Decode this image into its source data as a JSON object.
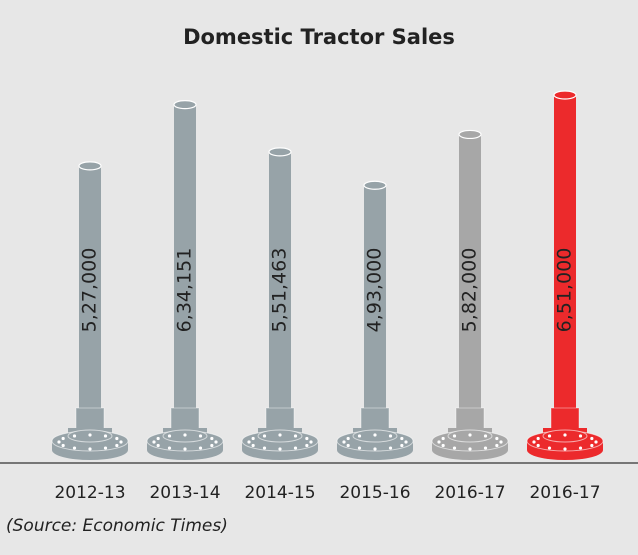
{
  "chart_data": {
    "type": "bar",
    "title": "Domestic Tractor Sales",
    "categories": [
      "2012-13",
      "2013-14",
      "2014-15",
      "2015-16",
      "2016-17",
      "2016-17"
    ],
    "values": [
      527000,
      634151,
      551463,
      493000,
      582000,
      651000
    ],
    "value_labels": [
      "5,27,000",
      "6,34,151",
      "5,51,463",
      "4,93,000",
      "5,82,000",
      "6,51,000"
    ],
    "colors": [
      "#97a3a8",
      "#97a3a8",
      "#97a3a8",
      "#97a3a8",
      "#a7a7a7",
      "#ec2a2c"
    ],
    "source": "(Source: Economic Times)"
  }
}
